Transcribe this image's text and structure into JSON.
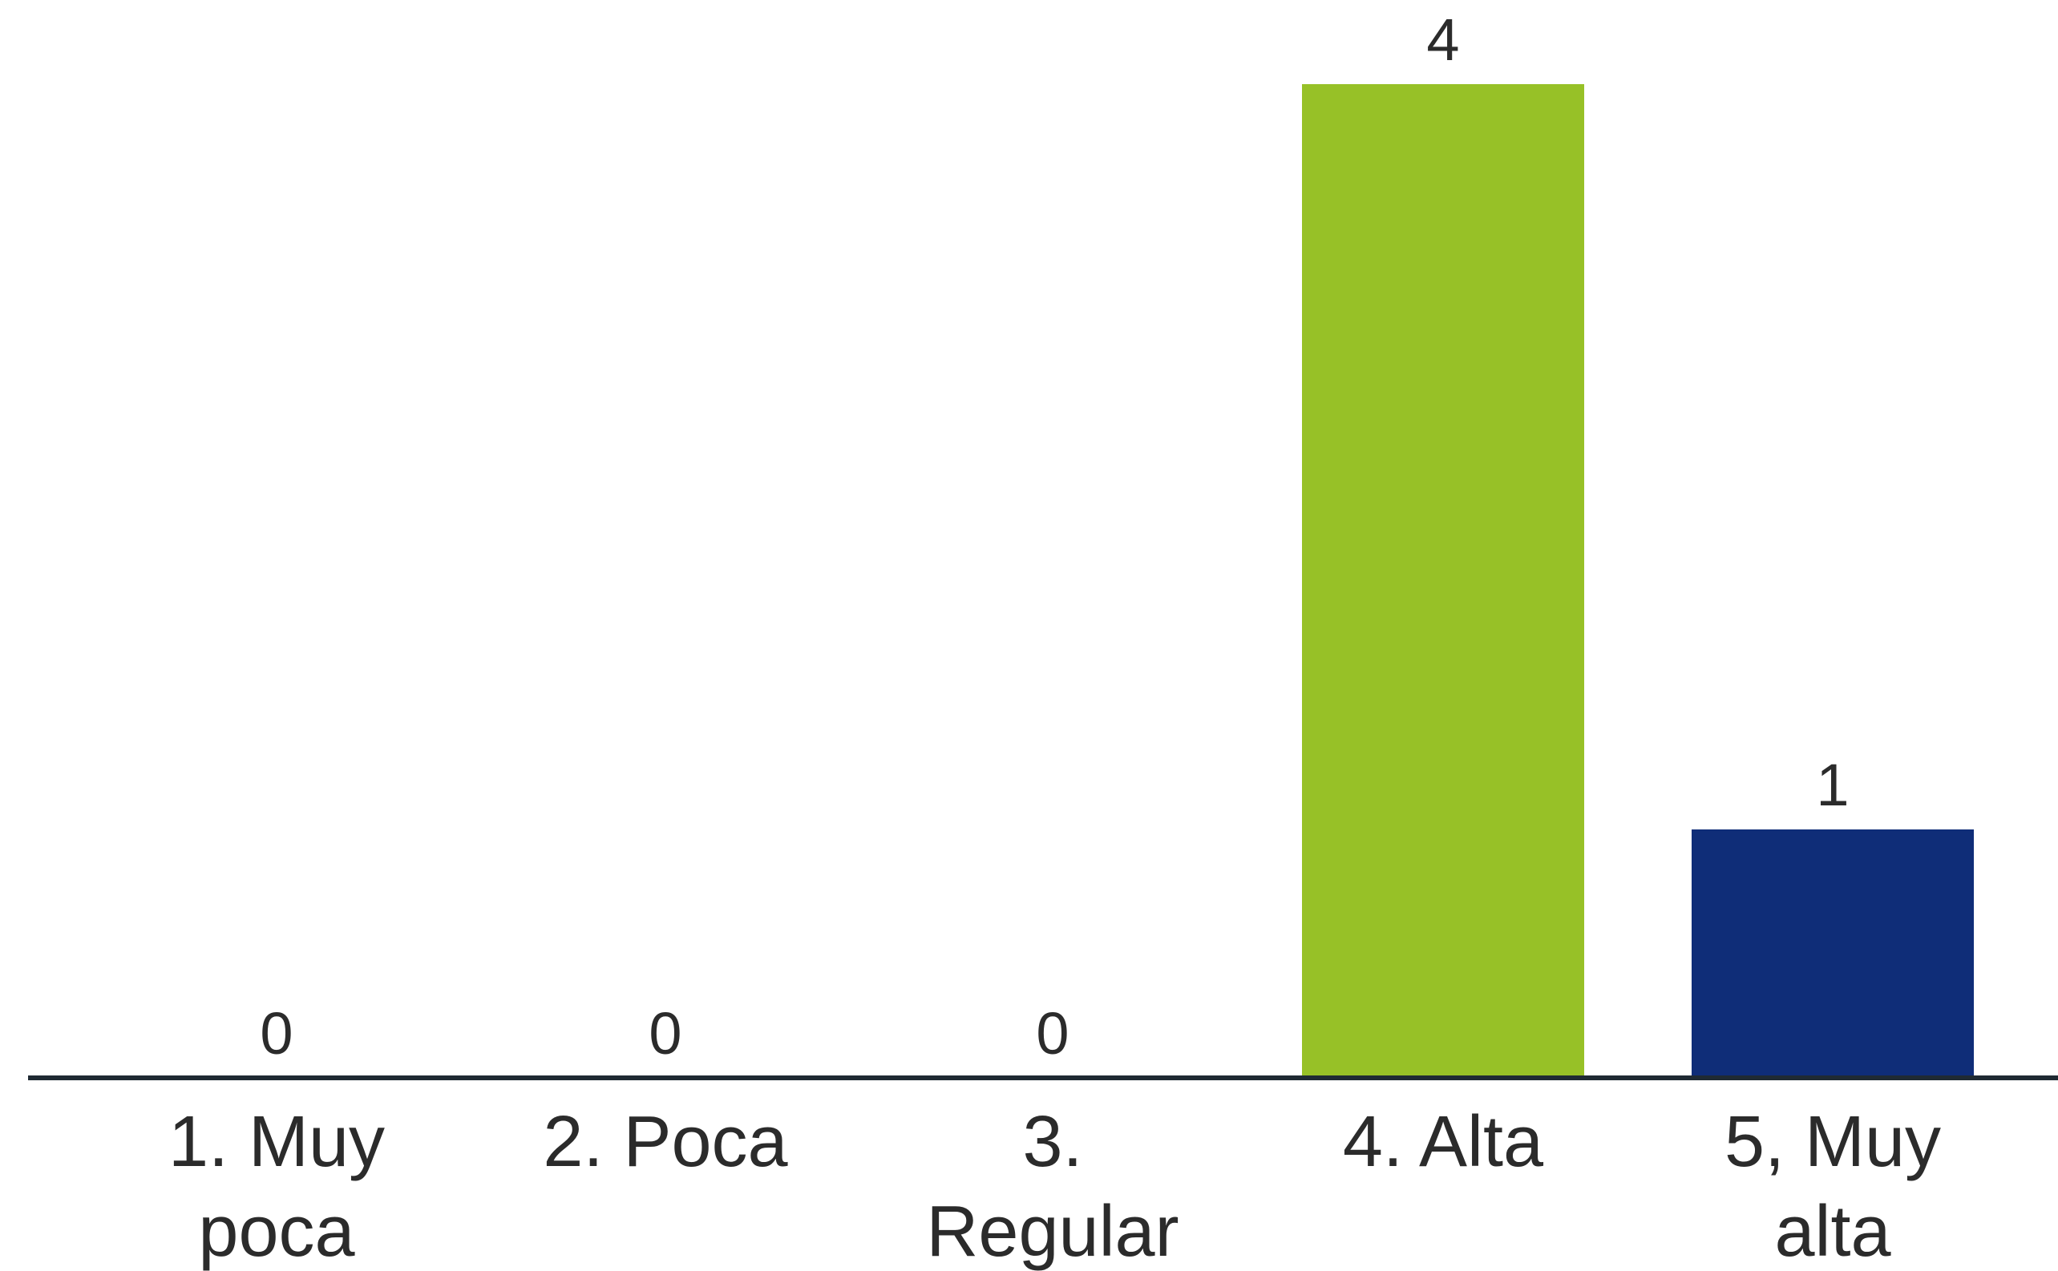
{
  "chart_data": {
    "type": "bar",
    "categories": [
      [
        "1. Muy",
        "poca"
      ],
      [
        "2. Poca"
      ],
      [
        "3.",
        "Regular"
      ],
      [
        "4. Alta"
      ],
      [
        "5, Muy",
        "alta"
      ]
    ],
    "values": [
      0,
      0,
      0,
      4,
      1
    ],
    "value_labels": [
      "0",
      "0",
      "0",
      "4",
      "1"
    ],
    "bar_colors": [
      "#97C127",
      "#97C127",
      "#97C127",
      "#97C127",
      "#0F2D78"
    ],
    "axis_color": "#1f2a33",
    "ylim": [
      0,
      4
    ],
    "grid": false,
    "legend": "none",
    "title": "",
    "xlabel": "",
    "ylabel": ""
  }
}
